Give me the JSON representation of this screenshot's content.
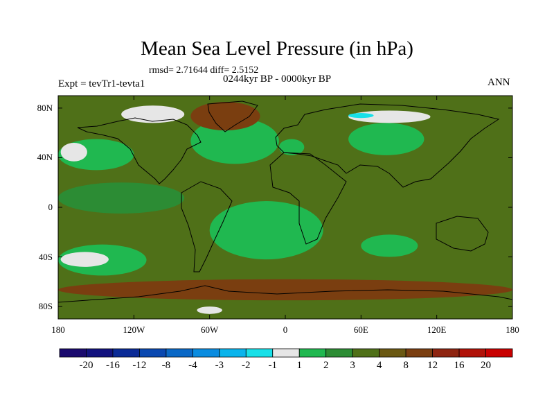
{
  "chart_data": {
    "type": "heatmap",
    "title": "Mean Sea Level Pressure (in hPa)",
    "stats_text": "rmsd= 2.71644 diff= 2.5152",
    "period_text": "0244kyr BP - 0000kyr BP",
    "experiment_text": "Expt = tevTr1-tevta1",
    "season": "ANN",
    "projection": "cylindrical equidistant",
    "lon_range": [
      -180,
      180
    ],
    "lat_range": [
      -90,
      90
    ],
    "lat_ticks": [
      {
        "value": 80,
        "label": "80N"
      },
      {
        "value": 40,
        "label": "40N"
      },
      {
        "value": 0,
        "label": "0"
      },
      {
        "value": -40,
        "label": "40S"
      },
      {
        "value": -80,
        "label": "80S"
      }
    ],
    "lon_ticks": [
      {
        "value": -180,
        "label": "180"
      },
      {
        "value": -120,
        "label": "120W"
      },
      {
        "value": -60,
        "label": "60W"
      },
      {
        "value": 0,
        "label": "0"
      },
      {
        "value": 60,
        "label": "60E"
      },
      {
        "value": 120,
        "label": "120E"
      },
      {
        "value": 180,
        "label": "180"
      }
    ],
    "colorbar": {
      "levels": [
        "-20",
        "-16",
        "-12",
        "-8",
        "-4",
        "-3",
        "-2",
        "-1",
        "1",
        "2",
        "3",
        "4",
        "8",
        "12",
        "16",
        "20"
      ],
      "colors": [
        "#1a0a6e",
        "#12127e",
        "#0a2a96",
        "#0a48b0",
        "#0a68c6",
        "#0a8ce0",
        "#0ab4ec",
        "#18e0e8",
        "#e6e6e6",
        "#20b850",
        "#2c8c34",
        "#4f7018",
        "#6a5812",
        "#7a3e10",
        "#8e2410",
        "#b01208",
        "#c80000"
      ]
    },
    "field_regions": [
      {
        "name": "background",
        "level_bin": 11,
        "lon": [
          -180,
          180
        ],
        "lat": [
          -90,
          90
        ]
      },
      {
        "name": "north-pacific-band",
        "level_bin": 9,
        "lon": [
          -180,
          -120
        ],
        "lat": [
          30,
          55
        ]
      },
      {
        "name": "north-pacific-core",
        "level_bin": 8,
        "lon": [
          -178,
          -157
        ],
        "lat": [
          37,
          52
        ]
      },
      {
        "name": "north-atlantic",
        "level_bin": 9,
        "lon": [
          -75,
          -5
        ],
        "lat": [
          35,
          72
        ]
      },
      {
        "name": "siberia",
        "level_bin": 9,
        "lon": [
          50,
          110
        ],
        "lat": [
          42,
          68
        ]
      },
      {
        "name": "west-europe",
        "level_bin": 9,
        "lon": [
          -5,
          15
        ],
        "lat": [
          42,
          55
        ]
      },
      {
        "name": "south-atlantic",
        "level_bin": 9,
        "lon": [
          -60,
          30
        ],
        "lat": [
          -42,
          5
        ]
      },
      {
        "name": "east-pacific-tropics",
        "level_bin": 10,
        "lon": [
          -180,
          -80
        ],
        "lat": [
          -5,
          20
        ]
      },
      {
        "name": "south-pacific-band",
        "level_bin": 9,
        "lon": [
          -180,
          -110
        ],
        "lat": [
          -55,
          -30
        ]
      },
      {
        "name": "south-pacific-core",
        "level_bin": 8,
        "lon": [
          -178,
          -140
        ],
        "lat": [
          -48,
          -36
        ]
      },
      {
        "name": "indian-ocean",
        "level_bin": 9,
        "lon": [
          60,
          105
        ],
        "lat": [
          -40,
          -22
        ]
      },
      {
        "name": "southern-ocean",
        "level_bin": 13,
        "lon": [
          -180,
          180
        ],
        "lat": [
          -75,
          -58
        ]
      },
      {
        "name": "greenland-high",
        "level_bin": 13,
        "lon": [
          -75,
          -20
        ],
        "lat": [
          62,
          85
        ]
      },
      {
        "name": "arctic-canada",
        "level_bin": 8,
        "lon": [
          -130,
          -80
        ],
        "lat": [
          68,
          82
        ]
      },
      {
        "name": "north-siberian-coast",
        "level_bin": 8,
        "lon": [
          50,
          115
        ],
        "lat": [
          68,
          78
        ]
      },
      {
        "name": "arctic-cyan",
        "level_bin": 7,
        "lon": [
          50,
          70
        ],
        "lat": [
          72,
          76
        ]
      },
      {
        "name": "antarctic-coast",
        "level_bin": 8,
        "lon": [
          -70,
          -50
        ],
        "lat": [
          -86,
          -80
        ]
      }
    ]
  }
}
